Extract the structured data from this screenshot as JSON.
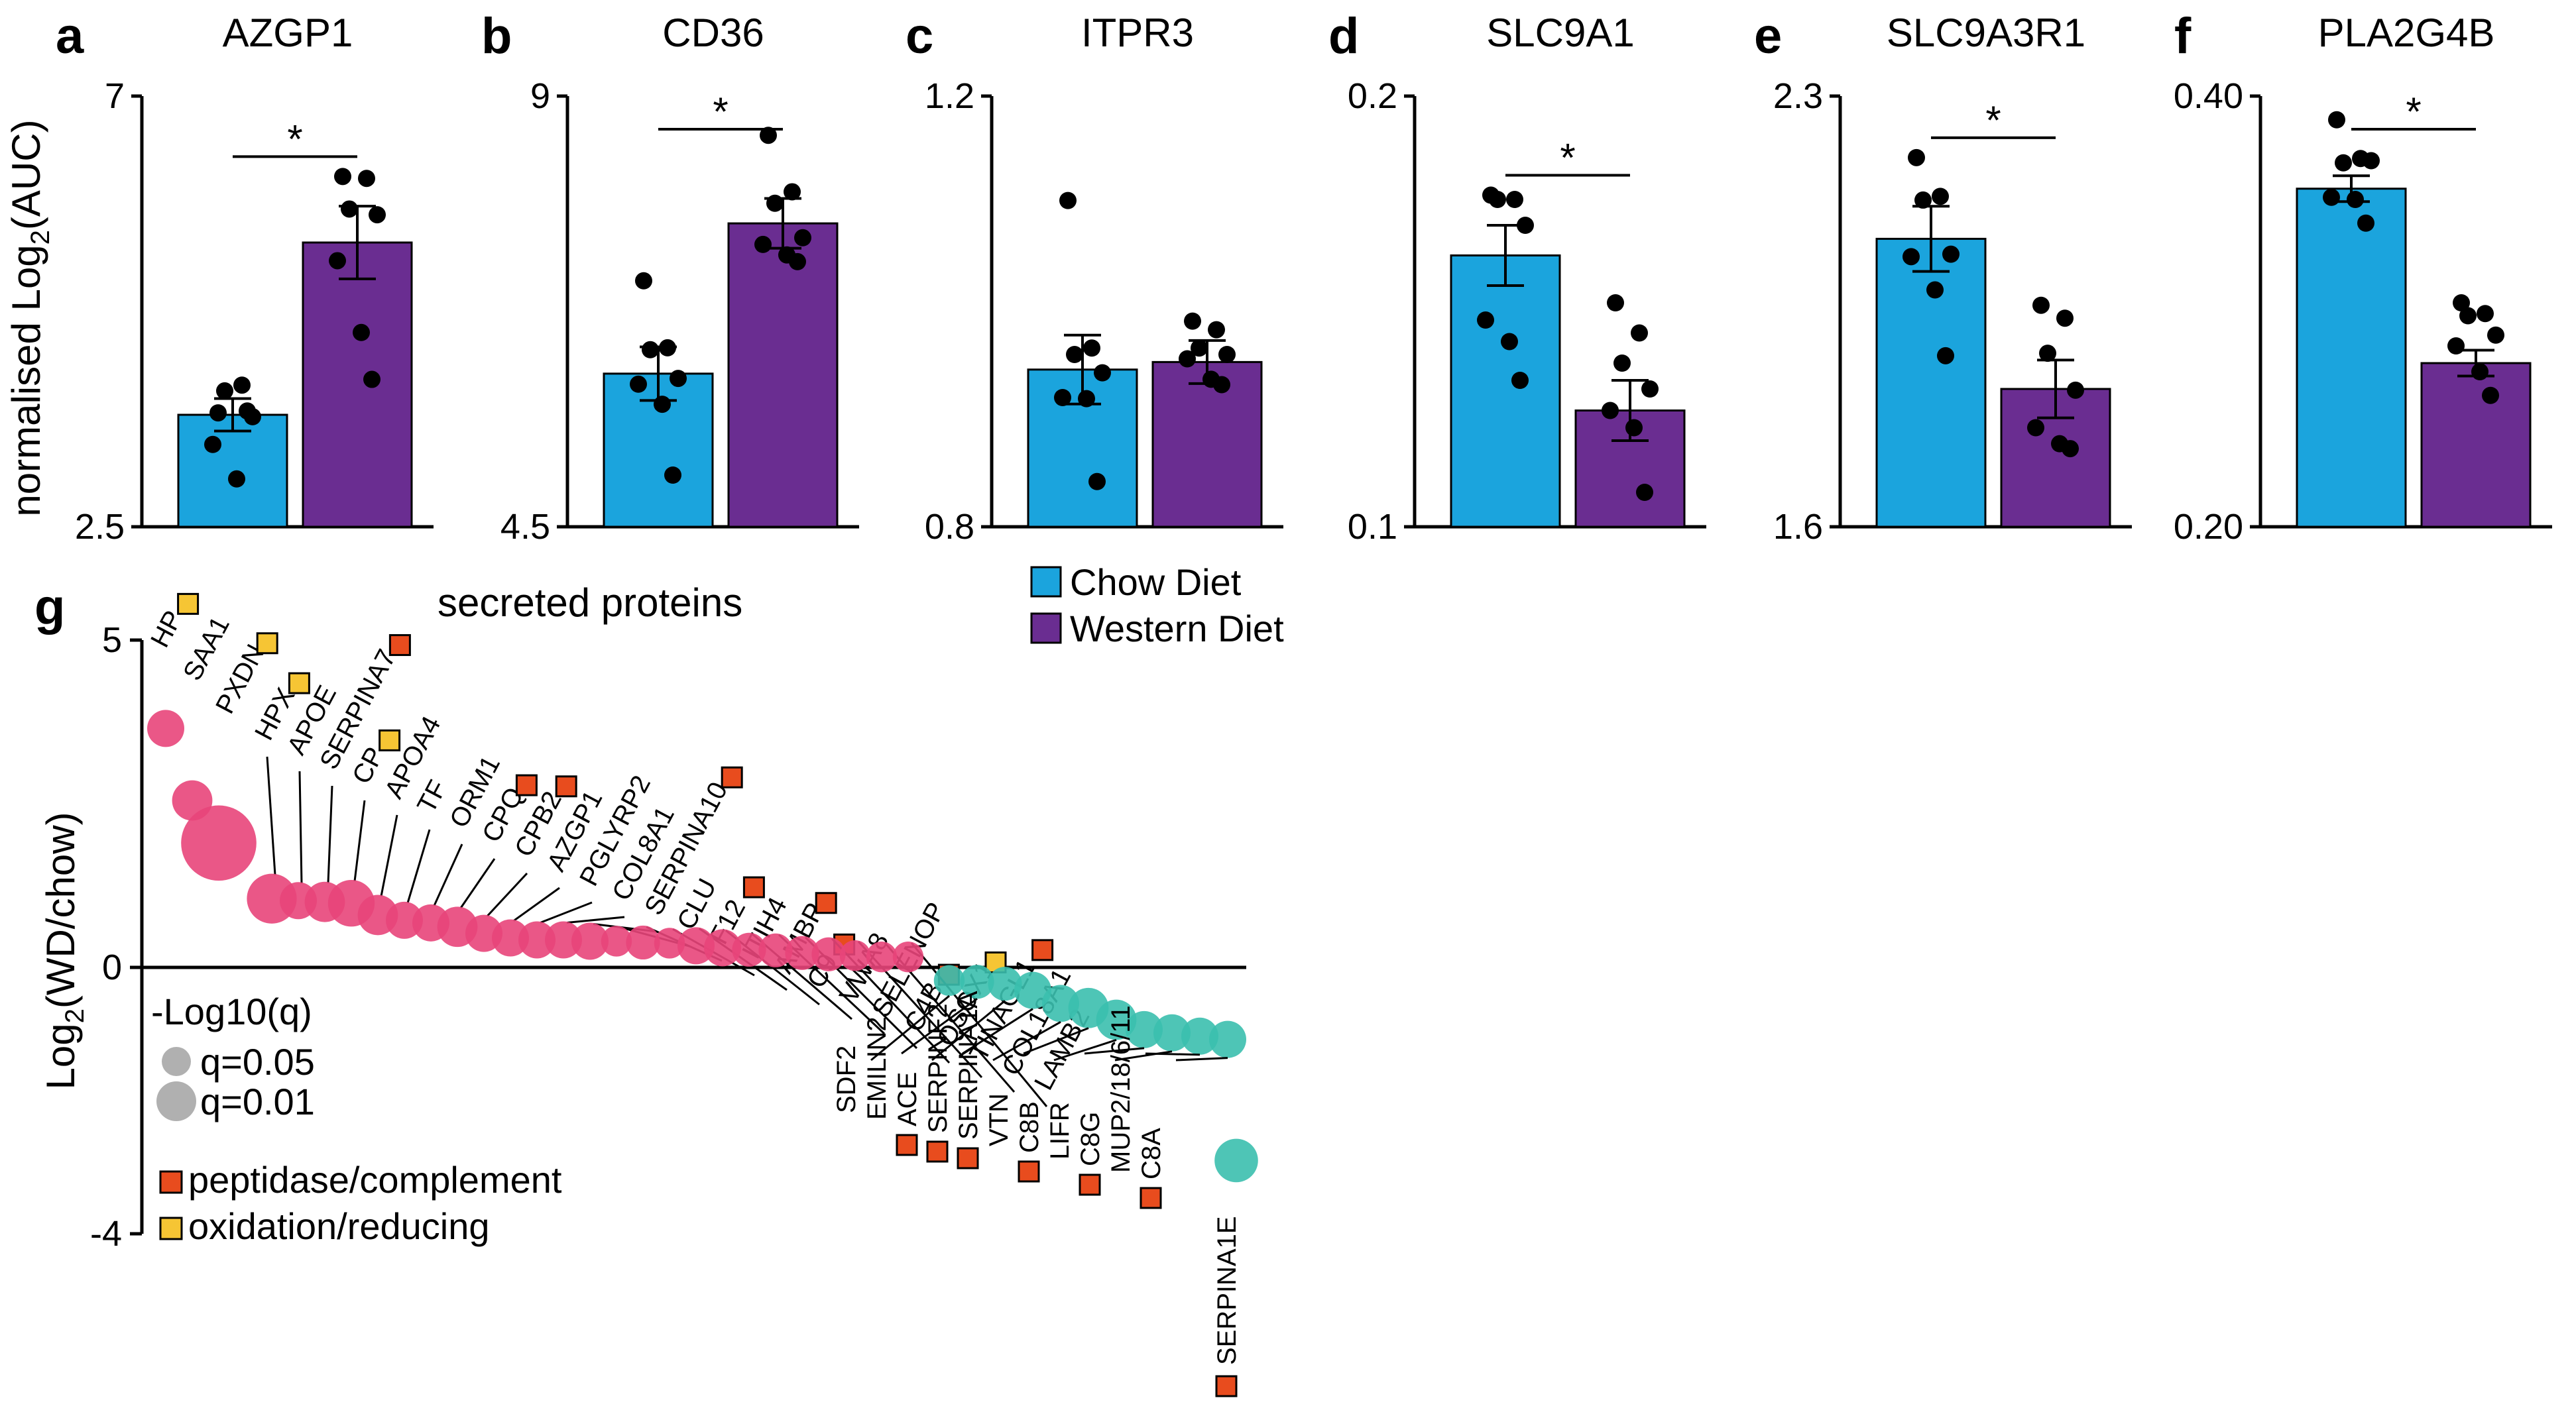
{
  "panels": [
    {
      "label": "a",
      "title": "AZGP1",
      "ylim": [
        2.5,
        7
      ],
      "ticks": [
        "2.5",
        "7"
      ],
      "chow_mean": 3.67,
      "chow_sem": 0.17,
      "western_mean": 5.47,
      "western_sem": 0.38,
      "chow_points": [
        3.69,
        3.98,
        3.92,
        3.65,
        3.36,
        3.0,
        3.71
      ],
      "western_points": [
        6.16,
        6.14,
        5.82,
        5.76,
        5.28,
        4.53,
        4.04
      ],
      "significant": true
    },
    {
      "label": "b",
      "title": "CD36",
      "ylim": [
        4.5,
        9
      ],
      "ticks": [
        "4.5",
        "9"
      ],
      "chow_mean": 6.1,
      "chow_sem": 0.28,
      "western_mean": 7.67,
      "western_sem": 0.26,
      "chow_points": [
        7.07,
        6.37,
        6.35,
        6.05,
        5.99,
        5.78,
        5.04
      ],
      "western_points": [
        8.59,
        8.0,
        7.88,
        7.52,
        7.45,
        7.34,
        7.27
      ],
      "significant": true
    },
    {
      "label": "c",
      "title": "ITPR3",
      "ylim": [
        0.8,
        1.2
      ],
      "ticks": [
        "0.8",
        "1.2"
      ],
      "chow_mean": 0.946,
      "chow_sem": 0.032,
      "western_mean": 0.953,
      "western_sem": 0.02,
      "chow_points": [
        1.103,
        0.966,
        0.96,
        0.943,
        0.92,
        0.919,
        0.842
      ],
      "western_points": [
        0.991,
        0.983,
        0.966,
        0.96,
        0.956,
        0.937,
        0.932
      ],
      "significant": false
    },
    {
      "label": "d",
      "title": "SLC9A1",
      "ylim": [
        0.1,
        0.2
      ],
      "ticks": [
        "0.1",
        "0.2"
      ],
      "chow_mean": 0.163,
      "chow_sem": 0.007,
      "western_mean": 0.127,
      "western_sem": 0.007,
      "chow_points": [
        0.177,
        0.176,
        0.176,
        0.17,
        0.148,
        0.143,
        0.134
      ],
      "western_points": [
        0.152,
        0.145,
        0.138,
        0.132,
        0.127,
        0.123,
        0.108
      ],
      "significant": true
    },
    {
      "label": "e",
      "title": "SLC9A3R1",
      "ylim": [
        1.6,
        2.3
      ],
      "ticks": [
        "1.6",
        "2.3"
      ],
      "chow_mean": 2.068,
      "chow_sem": 0.053,
      "western_mean": 1.824,
      "western_sem": 0.047,
      "chow_points": [
        2.2,
        2.137,
        2.131,
        2.043,
        2.039,
        1.985,
        1.878
      ],
      "western_points": [
        1.96,
        1.939,
        1.882,
        1.822,
        1.761,
        1.735,
        1.727
      ],
      "significant": true
    },
    {
      "label": "f",
      "title": "PLA2G4B",
      "ylim": [
        0.2,
        0.4
      ],
      "ticks": [
        "0.40",
        "0.20"
      ],
      "chow_mean": 0.357,
      "chow_sem": 0.006,
      "western_mean": 0.276,
      "western_sem": 0.006,
      "chow_points": [
        0.389,
        0.371,
        0.369,
        0.37,
        0.353,
        0.352,
        0.341
      ],
      "western_points": [
        0.304,
        0.299,
        0.298,
        0.289,
        0.284,
        0.272,
        0.261
      ],
      "significant": true
    }
  ],
  "y_axis_label_left": "normalised Log2(AUC)",
  "legend": {
    "chow": "Chow Diet",
    "western": "Western Diet"
  },
  "colors": {
    "chow": "#1ba4dd",
    "western": "#6a2d91",
    "up": "#e8457a",
    "down": "#3bbfae",
    "peptidase": "#e84c1e",
    "oxidation": "#f6c534",
    "size_legend": "#b0b0b0"
  },
  "chart_data": [
    {
      "type": "bar",
      "panel": "a",
      "title": "AZGP1",
      "categories": [
        "Chow Diet",
        "Western Diet"
      ],
      "values": [
        3.67,
        5.47
      ],
      "ylabel": "normalised Log2(AUC)",
      "ylim": [
        2.5,
        7
      ],
      "annotation": "*"
    },
    {
      "type": "bar",
      "panel": "b",
      "title": "CD36",
      "categories": [
        "Chow Diet",
        "Western Diet"
      ],
      "values": [
        6.1,
        7.67
      ],
      "ylim": [
        4.5,
        9
      ],
      "annotation": "*"
    },
    {
      "type": "bar",
      "panel": "c",
      "title": "ITPR3",
      "categories": [
        "Chow Diet",
        "Western Diet"
      ],
      "values": [
        0.946,
        0.953
      ],
      "ylim": [
        0.8,
        1.2
      ]
    },
    {
      "type": "bar",
      "panel": "d",
      "title": "SLC9A1",
      "categories": [
        "Chow Diet",
        "Western Diet"
      ],
      "values": [
        0.163,
        0.127
      ],
      "ylim": [
        0.1,
        0.2
      ],
      "annotation": "*"
    },
    {
      "type": "bar",
      "panel": "e",
      "title": "SLC9A3R1",
      "categories": [
        "Chow Diet",
        "Western Diet"
      ],
      "values": [
        2.068,
        1.824
      ],
      "ylim": [
        1.6,
        2.3
      ],
      "annotation": "*"
    },
    {
      "type": "bar",
      "panel": "f",
      "title": "PLA2G4B",
      "categories": [
        "Chow Diet",
        "Western Diet"
      ],
      "values": [
        0.357,
        0.276
      ],
      "ylim": [
        0.2,
        0.4
      ],
      "annotation": "*"
    },
    {
      "type": "scatter",
      "panel": "g",
      "title": "secreted proteins",
      "ylabel": "Log2(WD/chow)",
      "ylim": [
        -4,
        5
      ],
      "yticks": [
        "-4",
        "0",
        "5"
      ],
      "size_legend_title": "-Log10(q)",
      "size_legend": [
        "q=0.05",
        "q=0.01"
      ],
      "category_legend": [
        "peptidase/complement",
        "oxidation/reducing"
      ],
      "up": [
        {
          "gene": "HP",
          "y": 3.65,
          "size": 1.0,
          "cat": "oxidation"
        },
        {
          "gene": "SAA1",
          "y": 2.55,
          "size": 1.1,
          "cat": null
        },
        {
          "gene": "PXDN",
          "y": 1.9,
          "size": 2.2,
          "cat": "oxidation"
        },
        {
          "gene": "HPX",
          "y": 1.05,
          "size": 1.4,
          "cat": "oxidation"
        },
        {
          "gene": "APOE",
          "y": 1.02,
          "size": 1.0,
          "cat": null
        },
        {
          "gene": "SERPINA7",
          "y": 1.0,
          "size": 1.1,
          "cat": "peptidase"
        },
        {
          "gene": "CP",
          "y": 0.98,
          "size": 1.3,
          "cat": "oxidation"
        },
        {
          "gene": "APOA4",
          "y": 0.8,
          "size": 1.1,
          "cat": null
        },
        {
          "gene": "TF",
          "y": 0.72,
          "size": 1.0,
          "cat": null
        },
        {
          "gene": "ORM1",
          "y": 0.68,
          "size": 1.0,
          "cat": null
        },
        {
          "gene": "CPQ",
          "y": 0.62,
          "size": 1.1,
          "cat": "peptidase"
        },
        {
          "gene": "CPB2",
          "y": 0.52,
          "size": 1.0,
          "cat": "peptidase"
        },
        {
          "gene": "AZGP1",
          "y": 0.45,
          "size": 1.0,
          "cat": null
        },
        {
          "gene": "PGLYRP2",
          "y": 0.42,
          "size": 1.0,
          "cat": null
        },
        {
          "gene": "COL8A1",
          "y": 0.42,
          "size": 1.0,
          "cat": null
        },
        {
          "gene": "SERPINA10",
          "y": 0.4,
          "size": 1.0,
          "cat": "peptidase"
        },
        {
          "gene": "CLU",
          "y": 0.4,
          "size": 0.8,
          "cat": null
        },
        {
          "gene": "F12",
          "y": 0.38,
          "size": 0.9,
          "cat": "peptidase"
        },
        {
          "gene": "ITIH4",
          "y": 0.37,
          "size": 0.8,
          "cat": null
        },
        {
          "gene": "AMBP",
          "y": 0.33,
          "size": 1.0,
          "cat": "peptidase"
        },
        {
          "gene": "C9",
          "y": 0.3,
          "size": 1.0,
          "cat": "peptidase"
        },
        {
          "gene": "VWA8",
          "y": 0.27,
          "size": 0.9,
          "cat": null
        },
        {
          "gene": "SELENOP",
          "y": 0.26,
          "size": 0.9,
          "cat": null
        },
        {
          "gene": "C4B",
          "y": 0.22,
          "size": 0.9,
          "cat": "peptidase"
        },
        {
          "gene": "QSOX1",
          "y": 0.2,
          "size": 0.9,
          "cat": "oxidation"
        },
        {
          "gene": "TINAGL1",
          "y": 0.18,
          "size": 0.8,
          "cat": "peptidase"
        },
        {
          "gene": "COL18A1",
          "y": 0.16,
          "size": 0.8,
          "cat": null
        },
        {
          "gene": "LAMB2",
          "y": 0.16,
          "size": 0.8,
          "cat": null
        }
      ],
      "down": [
        {
          "gene": "SDF2",
          "y": -0.2,
          "size": 0.8,
          "cat": null
        },
        {
          "gene": "EMILIN2",
          "y": -0.22,
          "size": 0.9,
          "cat": null
        },
        {
          "gene": "ACE",
          "y": -0.25,
          "size": 0.9,
          "cat": "peptidase"
        },
        {
          "gene": "SERPINF2",
          "y": -0.35,
          "size": 1.0,
          "cat": "peptidase"
        },
        {
          "gene": "SERPINA1A",
          "y": -0.55,
          "size": 1.0,
          "cat": "peptidase"
        },
        {
          "gene": "VTN",
          "y": -0.62,
          "size": 1.1,
          "cat": null
        },
        {
          "gene": "C8B",
          "y": -0.8,
          "size": 1.1,
          "cat": "peptidase"
        },
        {
          "gene": "LIFR",
          "y": -0.95,
          "size": 1.0,
          "cat": null
        },
        {
          "gene": "C8G",
          "y": -1.0,
          "size": 1.0,
          "cat": "peptidase"
        },
        {
          "gene": "MUP2/18/6/11",
          "y": -1.05,
          "size": 1.0,
          "cat": null
        },
        {
          "gene": "C8A",
          "y": -1.1,
          "size": 1.0,
          "cat": "peptidase"
        },
        {
          "gene": "SERPINA1E",
          "y": -2.95,
          "size": 1.2,
          "cat": "peptidase"
        }
      ]
    }
  ],
  "panel_g": {
    "label": "g",
    "title": "secreted proteins"
  }
}
